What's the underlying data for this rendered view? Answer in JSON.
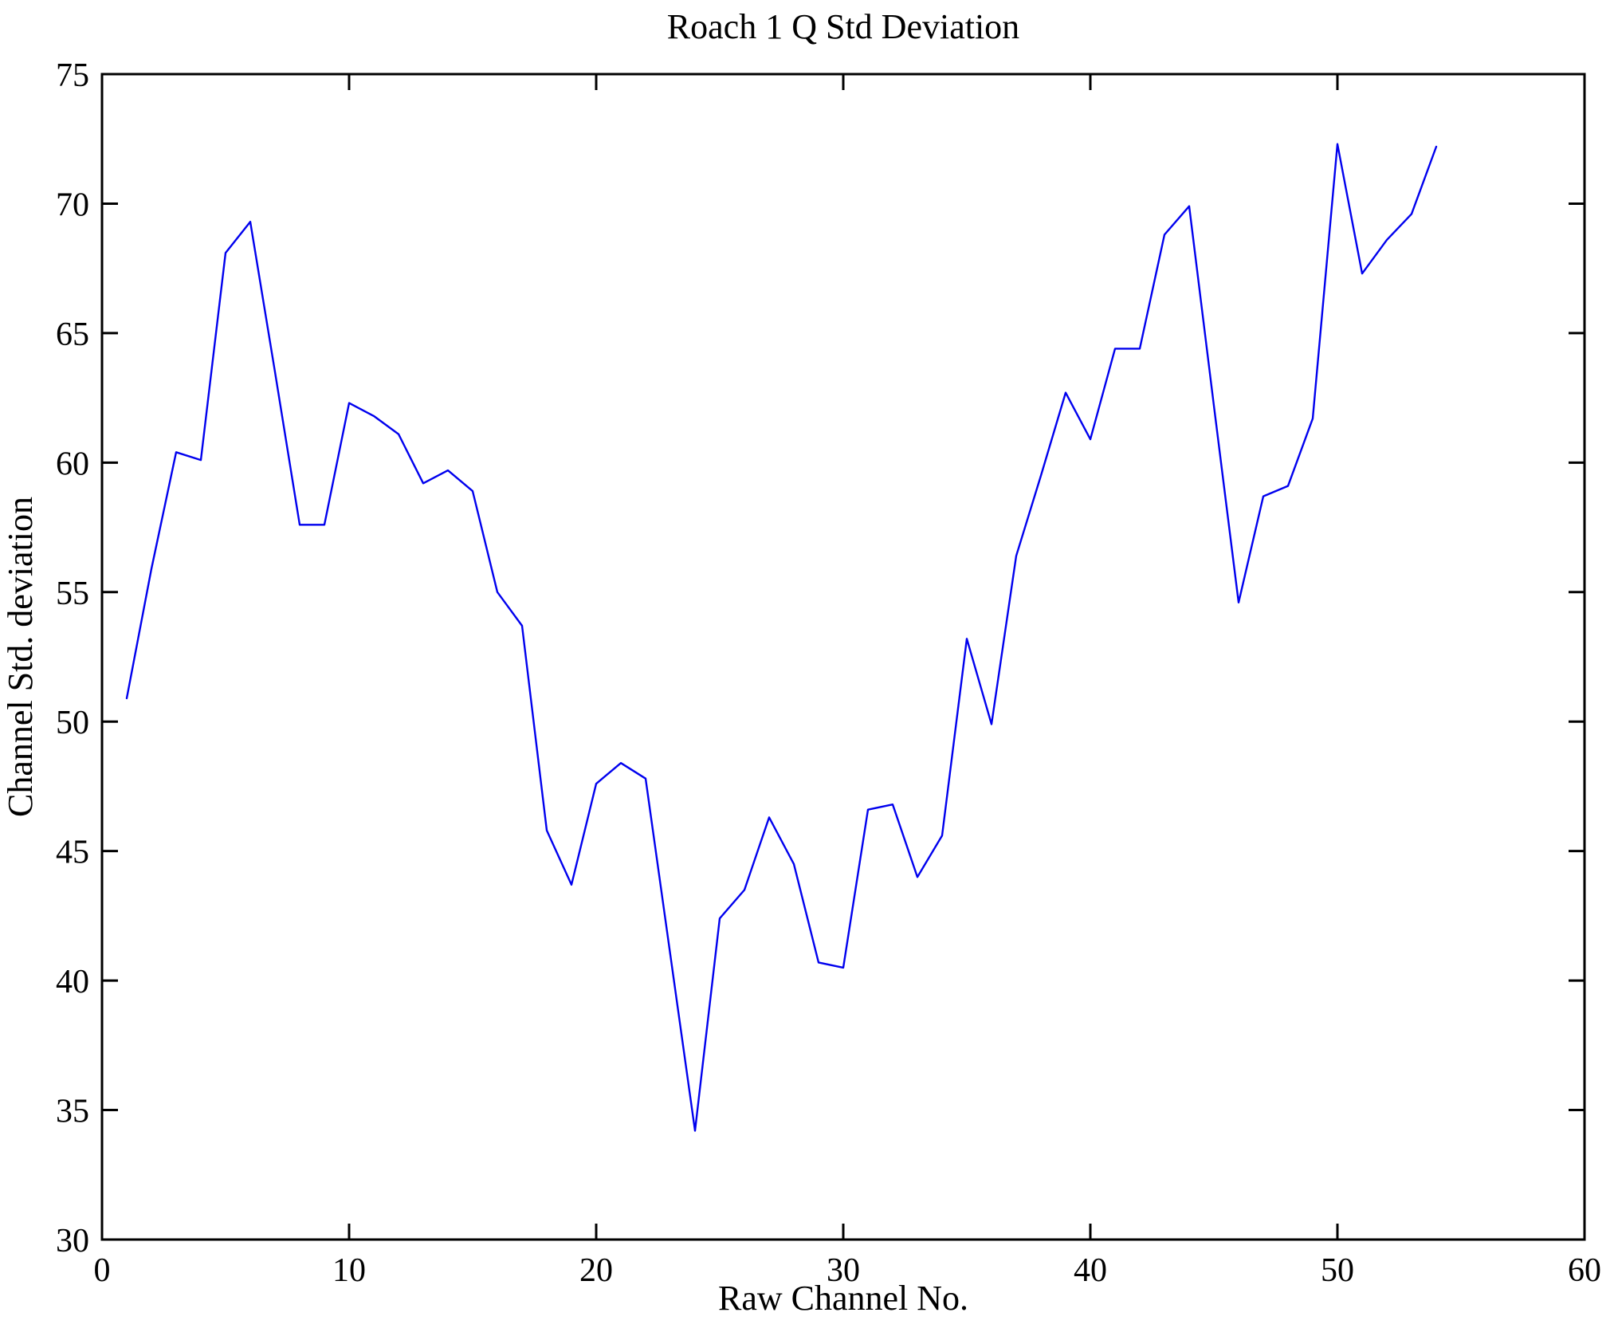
{
  "figure": {
    "background": "#ffffff",
    "frame_color": "#000000",
    "line_color": "#0000ee"
  },
  "chart_data": {
    "type": "line",
    "title": "Roach 1 Q Std Deviation",
    "xlabel": "Raw Channel No.",
    "ylabel": "Channel Std. deviation",
    "xlim": [
      0,
      60
    ],
    "ylim": [
      30,
      75
    ],
    "x_ticks": [
      0,
      10,
      20,
      30,
      40,
      50,
      60
    ],
    "y_ticks": [
      30,
      35,
      40,
      45,
      50,
      55,
      60,
      65,
      70,
      75
    ],
    "grid": false,
    "legend_position": "none",
    "series": [
      {
        "name": "Channel Std. deviation",
        "x": [
          1,
          2,
          3,
          4,
          5,
          6,
          7,
          8,
          9,
          10,
          11,
          12,
          13,
          14,
          15,
          16,
          17,
          18,
          19,
          20,
          21,
          22,
          23,
          24,
          25,
          26,
          27,
          28,
          29,
          30,
          31,
          32,
          33,
          34,
          35,
          36,
          37,
          38,
          39,
          40,
          41,
          42,
          43,
          44,
          45,
          46,
          47,
          48,
          49,
          50,
          51,
          52,
          53,
          54
        ],
        "y": [
          50.9,
          55.9,
          60.4,
          60.1,
          68.1,
          69.3,
          63.5,
          57.6,
          57.6,
          62.3,
          61.8,
          61.1,
          59.2,
          59.7,
          58.9,
          55.0,
          53.7,
          45.8,
          43.7,
          47.6,
          48.4,
          47.8,
          41.0,
          34.2,
          42.4,
          43.5,
          46.3,
          44.5,
          40.7,
          40.5,
          46.6,
          46.8,
          44.0,
          45.6,
          53.2,
          49.9,
          56.4,
          59.5,
          62.7,
          60.9,
          64.4,
          64.4,
          68.8,
          69.9,
          62.2,
          54.6,
          58.7,
          59.1,
          61.7,
          72.3,
          67.3,
          68.6,
          69.6,
          72.2
        ]
      }
    ]
  }
}
